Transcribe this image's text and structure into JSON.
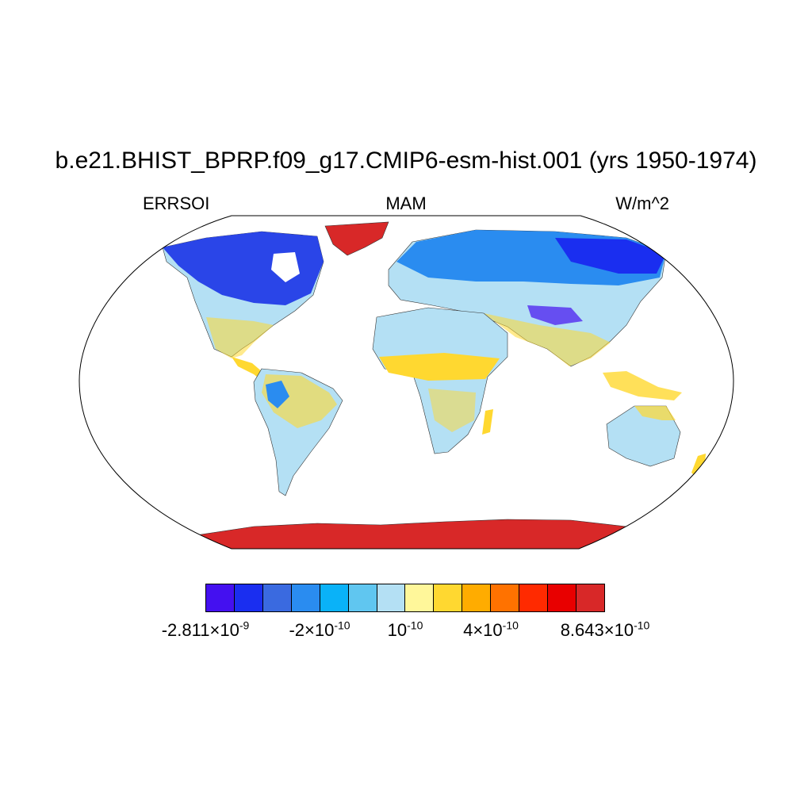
{
  "title": "b.e21.BHIST_BPRP.f09_g17.CMIP6-esm-hist.001 (yrs 1950-1974)",
  "left_label": "ERRSOI",
  "center_label": "MAM",
  "right_label": "W/m^2",
  "projection": "Robinson",
  "colorbar": {
    "colors": [
      "#4410f0",
      "#1a2ef0",
      "#3a6ae0",
      "#2a8cf0",
      "#0ab2f8",
      "#60c6f0",
      "#b4e0f4",
      "#fff79a",
      "#ffd830",
      "#ffac00",
      "#ff7200",
      "#ff2a00",
      "#e80000",
      "#d82828"
    ],
    "labels": [
      {
        "base": "-2.811×10",
        "exp": "-9"
      },
      {
        "base": "-2×10",
        "exp": "-10"
      },
      {
        "base": "10",
        "exp": "-10"
      },
      {
        "base": "4×10",
        "exp": "-10"
      },
      {
        "base": "8.643×10",
        "exp": "-10"
      }
    ]
  },
  "regions": {
    "arctic_north_america": "#2a45e8",
    "temperate_land": "#b4e0f4",
    "mixed_yellow": "#ffd830",
    "greenland": "#d82828",
    "antarctica": "#d82828"
  }
}
